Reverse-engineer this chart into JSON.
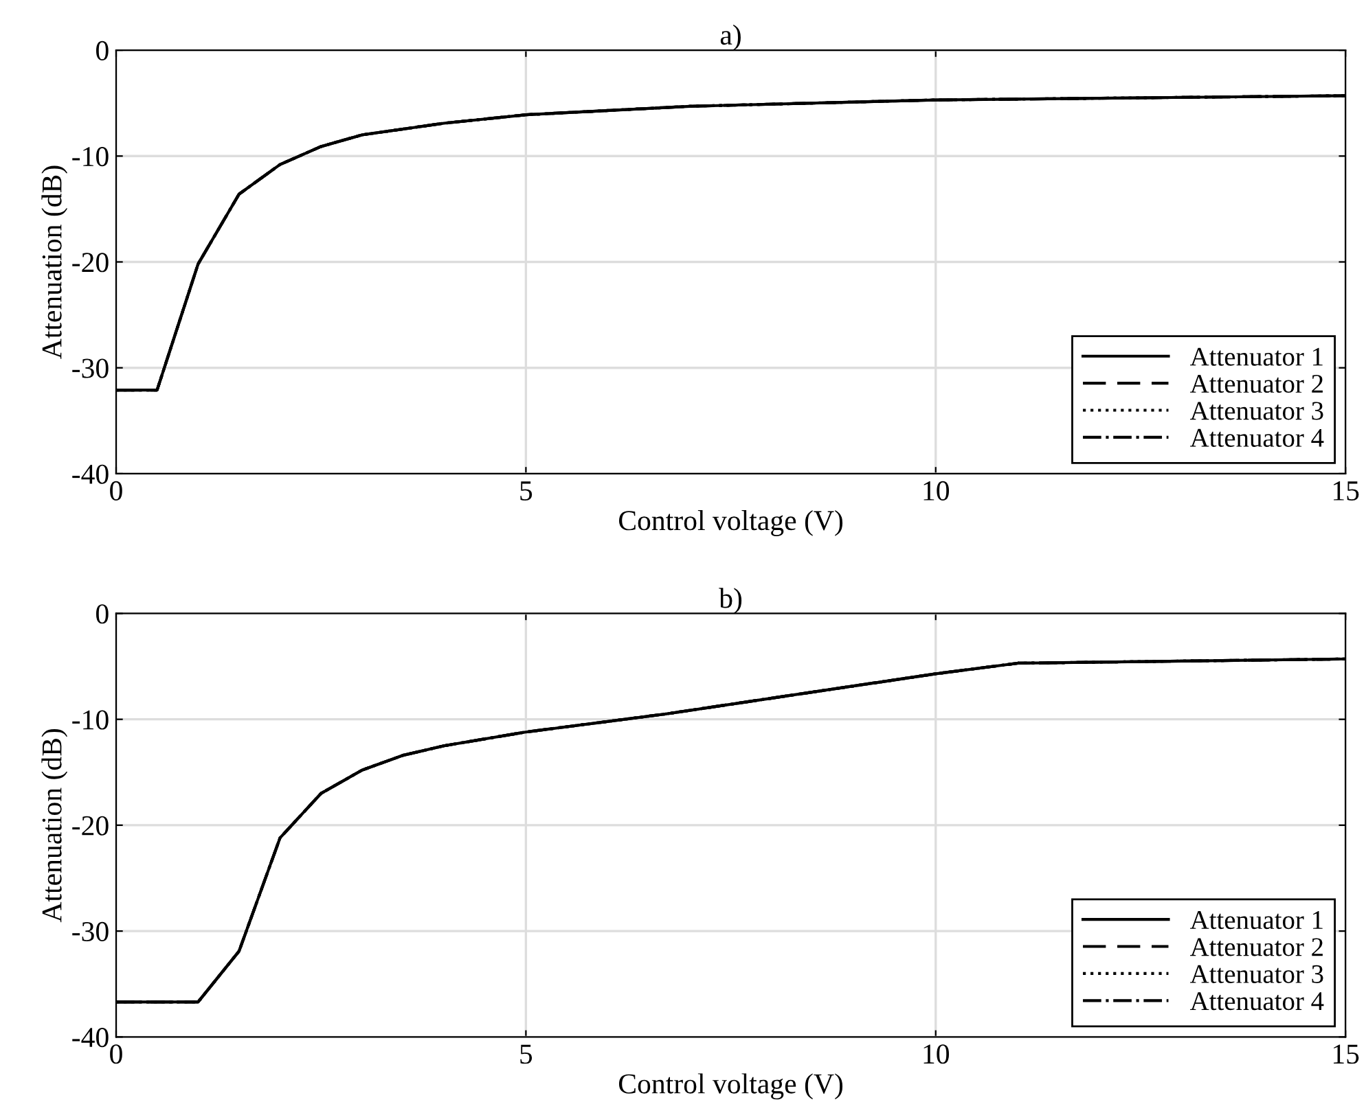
{
  "chart_data": [
    {
      "type": "line",
      "title": "a)",
      "xlabel": "Control voltage (V)",
      "ylabel": "Attenuation (dB)",
      "xlim": [
        0,
        15
      ],
      "ylim": [
        -40,
        0
      ],
      "xticks": [
        0,
        5,
        10,
        15
      ],
      "yticks": [
        -40,
        -30,
        -20,
        -10,
        0
      ],
      "grid": true,
      "legend": "bottom right",
      "x": [
        0,
        0.5,
        1.0,
        1.5,
        2.0,
        2.5,
        3.0,
        4.0,
        5.0,
        7.0,
        10.0,
        15.0
      ],
      "series": [
        {
          "name": "Attenuator 1",
          "color": "#000000",
          "line_style": "solid",
          "values": [
            -32.1,
            -32.1,
            -20.2,
            -13.6,
            -10.8,
            -9.1,
            -8.0,
            -6.9,
            -6.1,
            -5.3,
            -4.7,
            -4.3
          ]
        },
        {
          "name": "Attenuator 2",
          "color": "#000000",
          "line_style": "dashed",
          "values": [
            -32.1,
            -32.1,
            -20.2,
            -13.6,
            -10.8,
            -9.1,
            -8.0,
            -6.9,
            -6.1,
            -5.3,
            -4.7,
            -4.3
          ]
        },
        {
          "name": "Attenuator 3",
          "color": "#000000",
          "line_style": "dotted",
          "values": [
            -32.1,
            -32.1,
            -20.2,
            -13.6,
            -10.8,
            -9.1,
            -8.0,
            -6.9,
            -6.1,
            -5.3,
            -4.7,
            -4.3
          ]
        },
        {
          "name": "Attenuator 4",
          "color": "#000000",
          "line_style": "dashdot",
          "values": [
            -32.1,
            -32.1,
            -20.2,
            -13.6,
            -10.8,
            -9.1,
            -8.0,
            -6.9,
            -6.1,
            -5.3,
            -4.7,
            -4.3
          ]
        }
      ]
    },
    {
      "type": "line",
      "title": "b)",
      "xlabel": "Control voltage (V)",
      "ylabel": "Attenuation (dB)",
      "xlim": [
        0,
        15
      ],
      "ylim": [
        -40,
        0
      ],
      "xticks": [
        0,
        5,
        10,
        15
      ],
      "yticks": [
        -40,
        -30,
        -20,
        -10,
        0
      ],
      "grid": true,
      "legend": "bottom right",
      "x": [
        0,
        1.0,
        1.5,
        2.0,
        2.5,
        3.0,
        3.5,
        4.0,
        5.0,
        6.7,
        8.0,
        10.0,
        11.0,
        15.0
      ],
      "series": [
        {
          "name": "Attenuator 1",
          "color": "#000000",
          "line_style": "solid",
          "values": [
            -36.7,
            -36.7,
            -31.9,
            -21.2,
            -17.0,
            -14.8,
            -13.4,
            -12.5,
            -11.2,
            -9.5,
            -8.0,
            -5.7,
            -4.7,
            -4.3
          ]
        },
        {
          "name": "Attenuator 2",
          "color": "#000000",
          "line_style": "dashed",
          "values": [
            -36.7,
            -36.7,
            -31.9,
            -21.2,
            -17.0,
            -14.8,
            -13.4,
            -12.5,
            -11.2,
            -9.5,
            -8.0,
            -5.7,
            -4.7,
            -4.3
          ]
        },
        {
          "name": "Attenuator 3",
          "color": "#000000",
          "line_style": "dotted",
          "values": [
            -36.7,
            -36.7,
            -31.9,
            -21.2,
            -17.0,
            -14.8,
            -13.4,
            -12.5,
            -11.2,
            -9.5,
            -8.0,
            -5.7,
            -4.7,
            -4.3
          ]
        },
        {
          "name": "Attenuator 4",
          "color": "#000000",
          "line_style": "dashdot",
          "values": [
            -36.7,
            -36.7,
            -31.9,
            -21.2,
            -17.0,
            -14.8,
            -13.4,
            -12.5,
            -11.2,
            -9.5,
            -8.0,
            -5.7,
            -4.7,
            -4.3
          ]
        }
      ]
    }
  ]
}
